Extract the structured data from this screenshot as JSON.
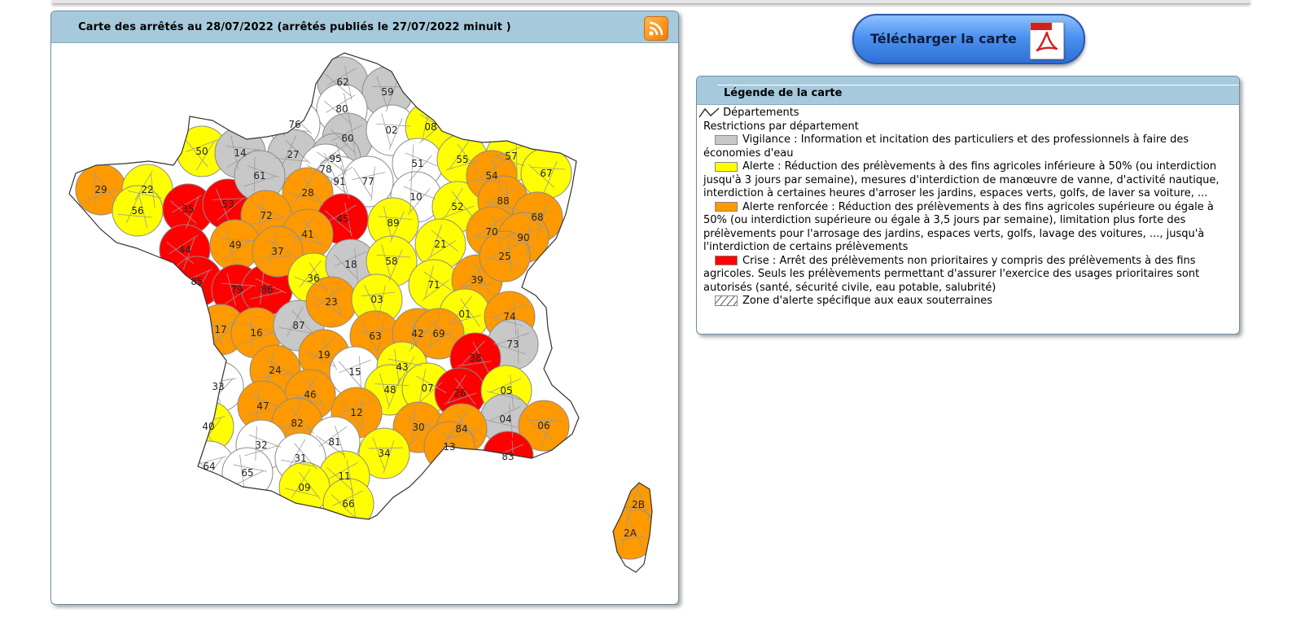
{
  "map": {
    "title": "Carte des arrêtés au 28/07/2022 (arrêtés publiés le 27/07/2022 minuit )",
    "rss_icon": "rss-feed-icon",
    "departments": [
      {
        "code": "62",
        "level": "vigilance"
      },
      {
        "code": "59",
        "level": "vigilance"
      },
      {
        "code": "80",
        "level": "none"
      },
      {
        "code": "76",
        "level": "none"
      },
      {
        "code": "60",
        "level": "vigilance"
      },
      {
        "code": "02",
        "level": "none"
      },
      {
        "code": "08",
        "level": "alerte"
      },
      {
        "code": "50",
        "level": "alerte"
      },
      {
        "code": "14",
        "level": "vigilance"
      },
      {
        "code": "27",
        "level": "vigilance"
      },
      {
        "code": "95",
        "level": "vigilance"
      },
      {
        "code": "78",
        "level": "none"
      },
      {
        "code": "91",
        "level": "none"
      },
      {
        "code": "77",
        "level": "none"
      },
      {
        "code": "51",
        "level": "none"
      },
      {
        "code": "55",
        "level": "alerte"
      },
      {
        "code": "57",
        "level": "alerte"
      },
      {
        "code": "67",
        "level": "alerte"
      },
      {
        "code": "29",
        "level": "alerte_renforcee"
      },
      {
        "code": "22",
        "level": "alerte"
      },
      {
        "code": "56",
        "level": "alerte"
      },
      {
        "code": "35",
        "level": "crise"
      },
      {
        "code": "53",
        "level": "crise"
      },
      {
        "code": "61",
        "level": "vigilance"
      },
      {
        "code": "28",
        "level": "alerte_renforcee"
      },
      {
        "code": "72",
        "level": "alerte_renforcee"
      },
      {
        "code": "45",
        "level": "crise"
      },
      {
        "code": "10",
        "level": "none"
      },
      {
        "code": "52",
        "level": "alerte"
      },
      {
        "code": "54",
        "level": "alerte_renforcee"
      },
      {
        "code": "88",
        "level": "alerte_renforcee"
      },
      {
        "code": "68",
        "level": "alerte_renforcee"
      },
      {
        "code": "44",
        "level": "crise"
      },
      {
        "code": "49",
        "level": "alerte_renforcee"
      },
      {
        "code": "41",
        "level": "alerte_renforcee"
      },
      {
        "code": "89",
        "level": "alerte"
      },
      {
        "code": "21",
        "level": "alerte"
      },
      {
        "code": "70",
        "level": "alerte_renforcee"
      },
      {
        "code": "90",
        "level": "alerte_renforcee"
      },
      {
        "code": "85",
        "level": "crise"
      },
      {
        "code": "79",
        "level": "crise"
      },
      {
        "code": "86",
        "level": "crise"
      },
      {
        "code": "37",
        "level": "alerte_renforcee"
      },
      {
        "code": "36",
        "level": "alerte"
      },
      {
        "code": "18",
        "level": "vigilance"
      },
      {
        "code": "58",
        "level": "alerte"
      },
      {
        "code": "71",
        "level": "alerte"
      },
      {
        "code": "39",
        "level": "alerte_renforcee"
      },
      {
        "code": "25",
        "level": "alerte_renforcee"
      },
      {
        "code": "17",
        "level": "alerte_renforcee"
      },
      {
        "code": "16",
        "level": "alerte_renforcee"
      },
      {
        "code": "87",
        "level": "vigilance"
      },
      {
        "code": "23",
        "level": "alerte_renforcee"
      },
      {
        "code": "03",
        "level": "alerte"
      },
      {
        "code": "01",
        "level": "alerte"
      },
      {
        "code": "74",
        "level": "alerte_renforcee"
      },
      {
        "code": "73",
        "level": "vigilance"
      },
      {
        "code": "63",
        "level": "alerte_renforcee"
      },
      {
        "code": "42",
        "level": "alerte_renforcee"
      },
      {
        "code": "69",
        "level": "alerte_renforcee"
      },
      {
        "code": "19",
        "level": "alerte_renforcee"
      },
      {
        "code": "38",
        "level": "crise"
      },
      {
        "code": "15",
        "level": "none"
      },
      {
        "code": "43",
        "level": "alerte"
      },
      {
        "code": "24",
        "level": "alerte_renforcee"
      },
      {
        "code": "33",
        "level": "none"
      },
      {
        "code": "46",
        "level": "alerte_renforcee"
      },
      {
        "code": "48",
        "level": "alerte"
      },
      {
        "code": "07",
        "level": "alerte"
      },
      {
        "code": "26",
        "level": "crise"
      },
      {
        "code": "05",
        "level": "alerte"
      },
      {
        "code": "47",
        "level": "alerte_renforcee"
      },
      {
        "code": "12",
        "level": "alerte_renforcee"
      },
      {
        "code": "82",
        "level": "alerte_renforcee"
      },
      {
        "code": "04",
        "level": "vigilance"
      },
      {
        "code": "06",
        "level": "alerte_renforcee"
      },
      {
        "code": "40",
        "level": "alerte"
      },
      {
        "code": "30",
        "level": "alerte_renforcee"
      },
      {
        "code": "84",
        "level": "alerte_renforcee"
      },
      {
        "code": "83",
        "level": "crise"
      },
      {
        "code": "13",
        "level": "alerte_renforcee"
      },
      {
        "code": "81",
        "level": "none"
      },
      {
        "code": "32",
        "level": "none"
      },
      {
        "code": "34",
        "level": "alerte"
      },
      {
        "code": "31",
        "level": "none"
      },
      {
        "code": "64",
        "level": "none"
      },
      {
        "code": "65",
        "level": "none"
      },
      {
        "code": "11",
        "level": "alerte"
      },
      {
        "code": "09",
        "level": "alerte"
      },
      {
        "code": "66",
        "level": "alerte"
      },
      {
        "code": "2B",
        "level": "alerte_renforcee"
      },
      {
        "code": "2A",
        "level": "alerte_renforcee"
      }
    ]
  },
  "download": {
    "label": "Télécharger la carte",
    "icon": "pdf-file-icon"
  },
  "legend": {
    "title": "Légende de la carte",
    "departements_label": "Départements",
    "restrictions_label": "Restrictions par département",
    "items": [
      {
        "key": "vigilance",
        "color": "#c8c8c8",
        "text": "Vigilance : Information et incitation des particuliers et des professionnels à faire des économies d'eau"
      },
      {
        "key": "alerte",
        "color": "#ffff00",
        "text": "Alerte : Réduction des prélèvements à des fins agricoles inférieure à 50% (ou interdiction jusqu'à 3 jours par semaine), mesures d'interdiction de manœuvre de vanne, d'activité nautique, interdiction à certaines heures d'arroser les jardins, espaces verts, golfs, de laver sa voiture, ..."
      },
      {
        "key": "alerte_renforcee",
        "color": "#ff9900",
        "text": "Alerte renforcée : Réduction des prélèvements à des fins agricoles supérieure ou égale à 50% (ou interdiction supérieure ou égale à 3,5 jours par semaine), limitation plus forte des prélèvements pour l'arrosage des jardins, espaces verts, golfs, lavage des voitures, ..., jusqu'à l'interdiction de certains prélèvements"
      },
      {
        "key": "crise",
        "color": "#ff0000",
        "text": "Crise : Arrêt des prélèvements non prioritaires y compris des prélèvements à des fins agricoles. Seuls les prélèvements permettant d'assurer l'exercice des usages prioritaires sont autorisés (santé, sécurité civile, eau potable, salubrité)"
      }
    ],
    "zone_label": "Zone d'alerte spécifique aux eaux souterraines"
  },
  "colors": {
    "header_bg": "#a6c9dc",
    "vigilance": "#c8c8c8",
    "alerte": "#ffff00",
    "alerte_renforcee": "#ff9900",
    "crise": "#ff0000",
    "none": "#ffffff"
  }
}
